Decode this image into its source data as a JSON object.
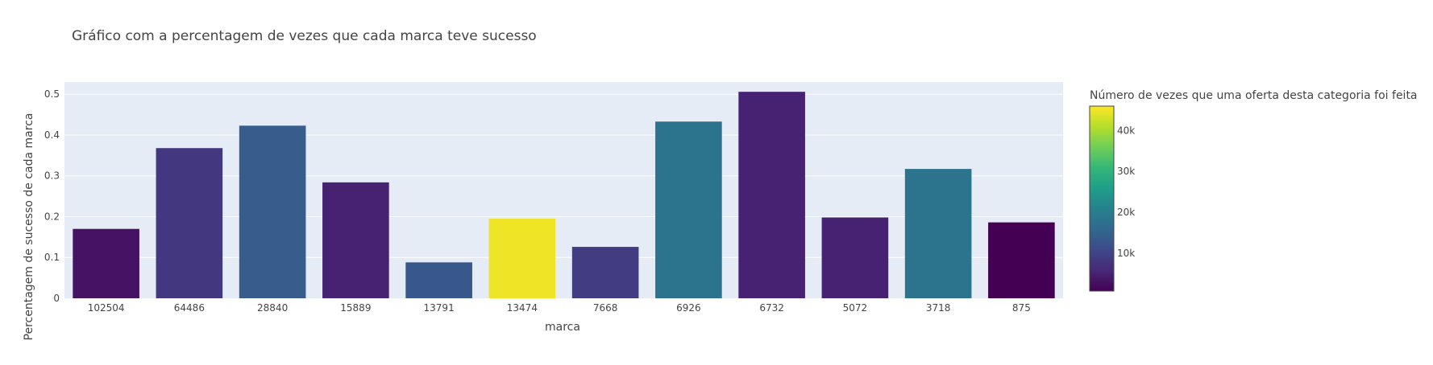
{
  "chart_data": {
    "type": "bar",
    "title": "Gráfico com a percentagem de vezes que cada marca teve sucesso",
    "xlabel": "marca",
    "ylabel": "Percentagem de sucesso de cada marca",
    "categories": [
      "102504",
      "64486",
      "28840",
      "15889",
      "13791",
      "13474",
      "7668",
      "6926",
      "6732",
      "5072",
      "3718",
      "875"
    ],
    "values": [
      0.17,
      0.368,
      0.423,
      0.284,
      0.088,
      0.195,
      0.126,
      0.433,
      0.506,
      0.198,
      0.317,
      0.186
    ],
    "color_values": [
      3000,
      8000,
      14000,
      5000,
      13000,
      45000,
      9000,
      18000,
      5000,
      5000,
      18000,
      700
    ],
    "ylim": [
      0,
      0.53
    ],
    "yticks": [
      0,
      0.1,
      0.2,
      0.3,
      0.4,
      0.5
    ],
    "ytick_labels": [
      "0",
      "0.1",
      "0.2",
      "0.3",
      "0.4",
      "0.5"
    ],
    "grid": true,
    "plot_background": "#e5ecf6",
    "colorbar": {
      "title": "Número de vezes que uma oferta desta categoria foi feita",
      "range": [
        700,
        46000
      ],
      "ticks": [
        10000,
        20000,
        30000,
        40000
      ],
      "tick_labels": [
        "10k",
        "20k",
        "30k",
        "40k"
      ],
      "colorscale": [
        "#440154",
        "#482878",
        "#3e4989",
        "#31688e",
        "#26828e",
        "#1f9e89",
        "#35b779",
        "#6ece58",
        "#b5de2b",
        "#fde725"
      ]
    }
  }
}
